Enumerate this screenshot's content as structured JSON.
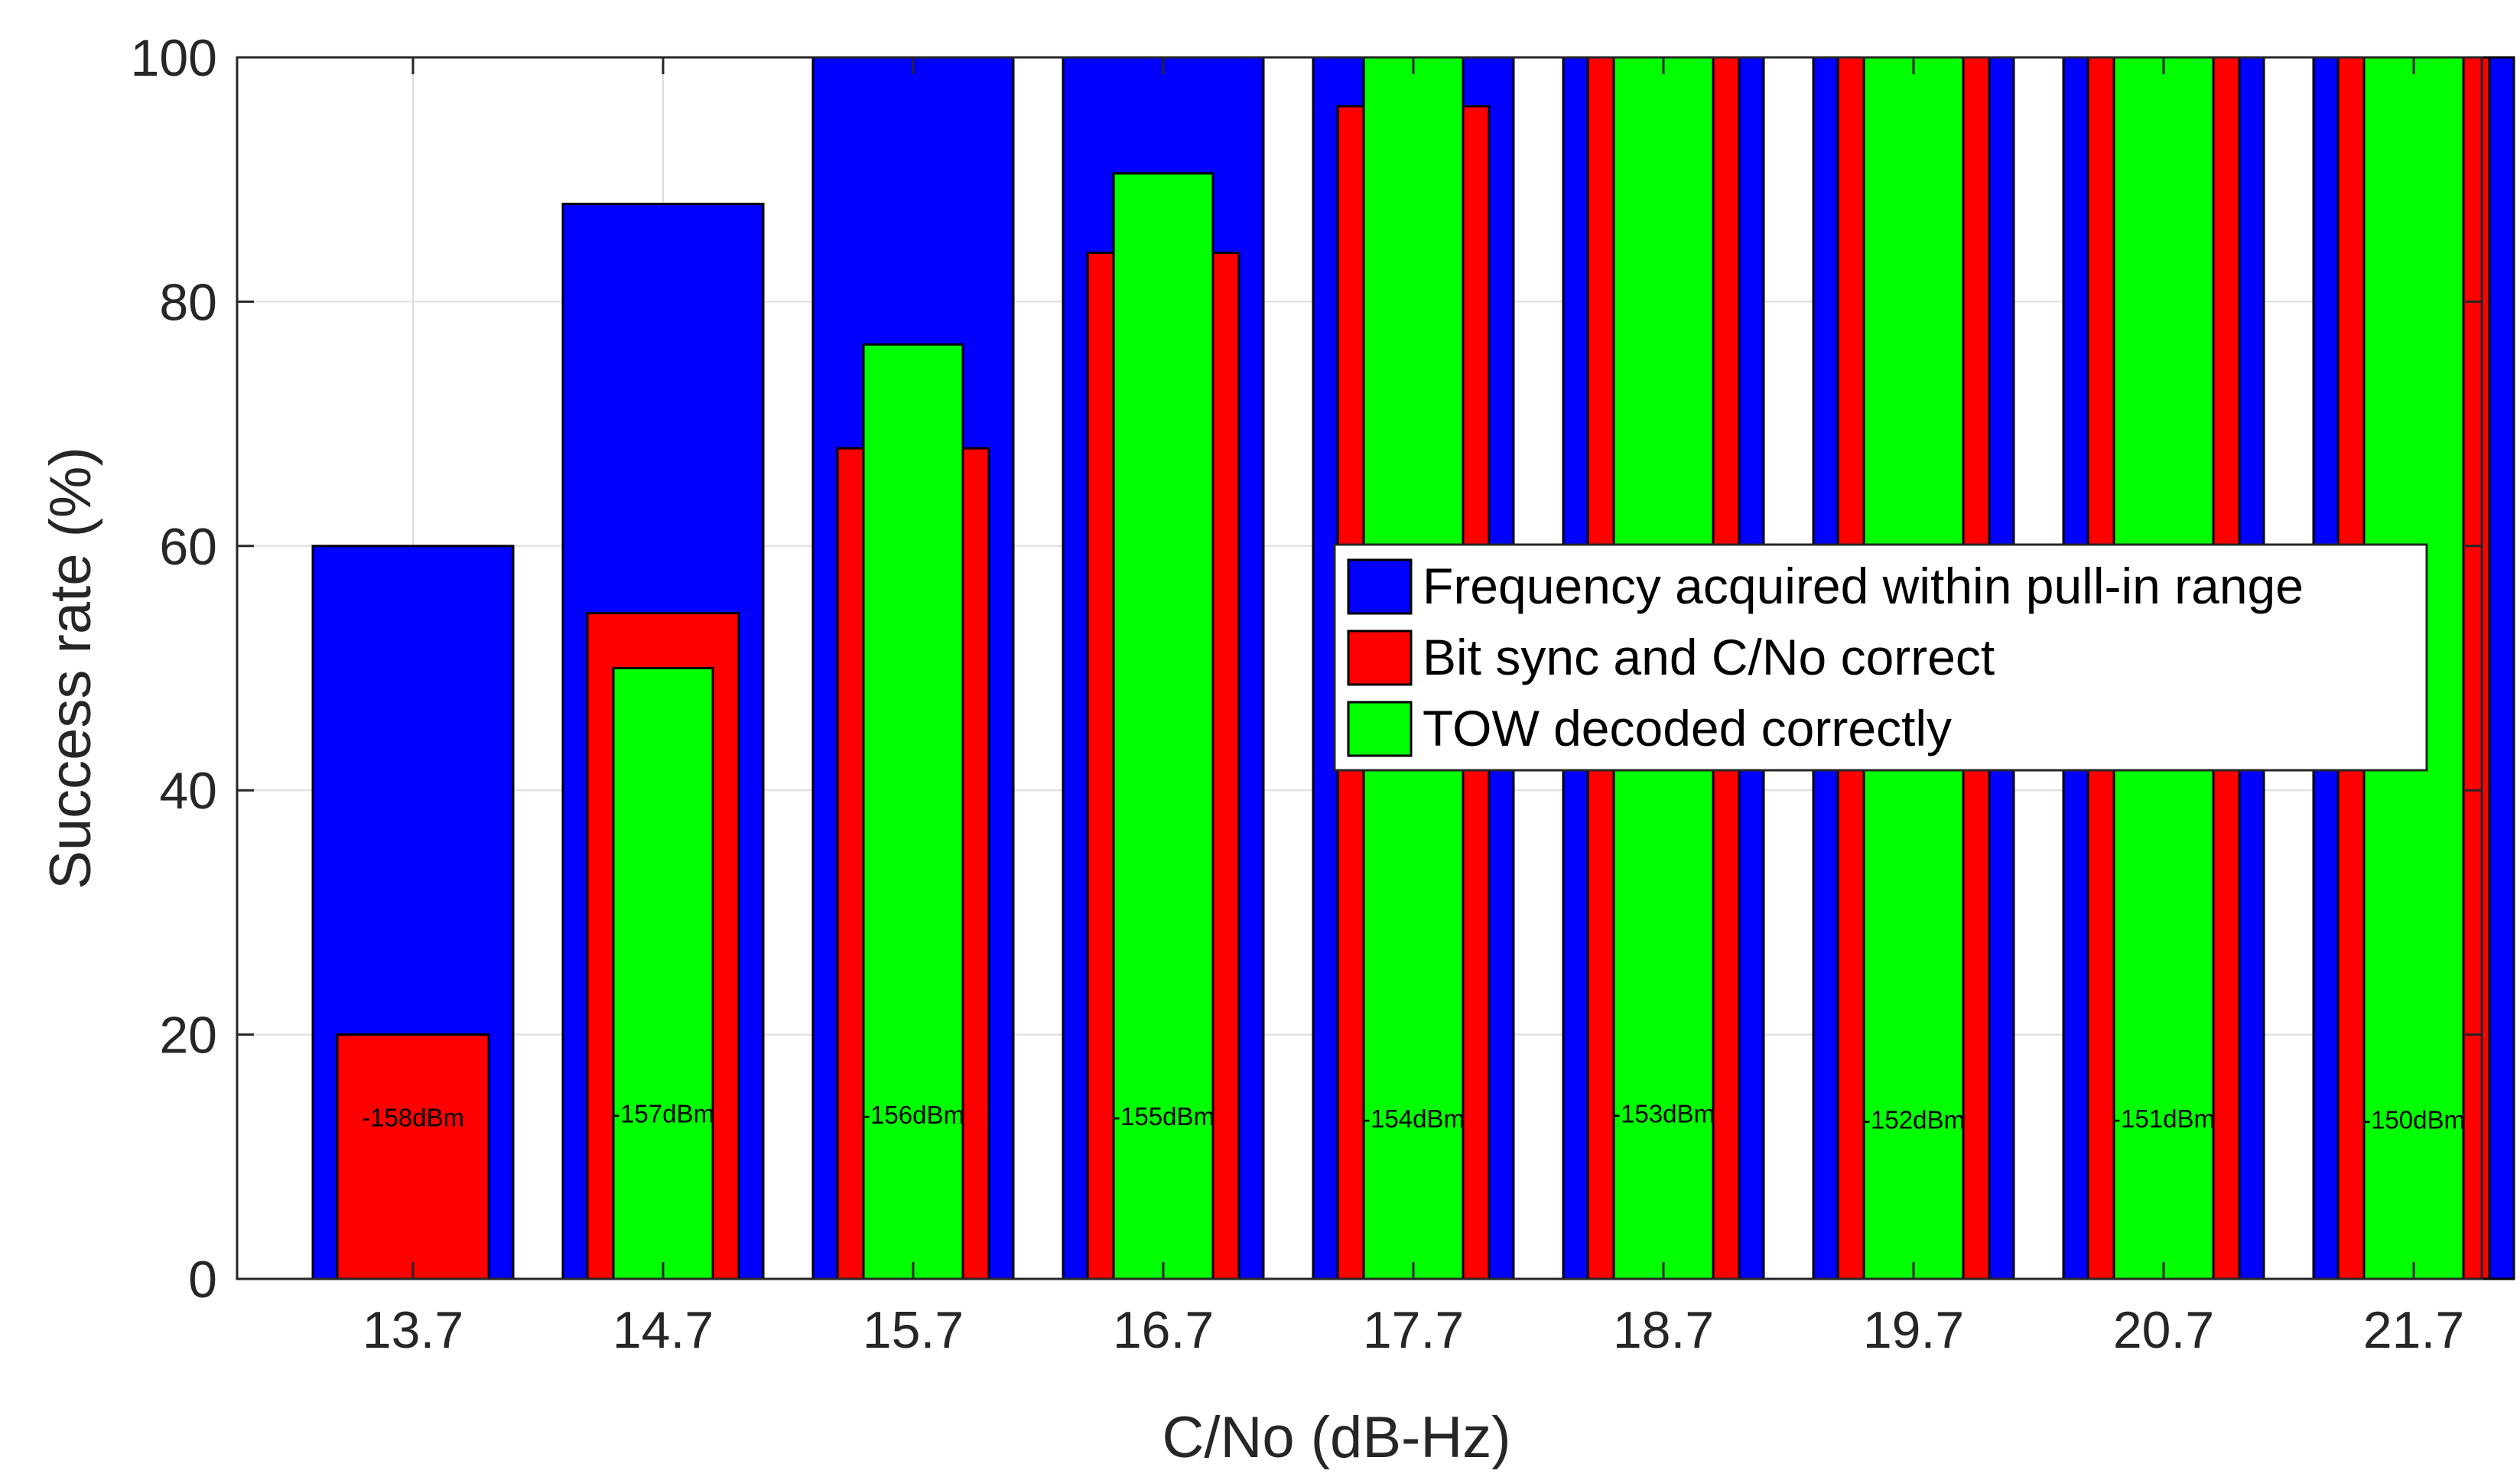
{
  "chart_data": {
    "type": "bar",
    "title": "",
    "xlabel": "C/No (dB-Hz)",
    "ylabel": "Success rate (%)",
    "ylim": [
      0,
      100
    ],
    "yticks": [
      "0",
      "20",
      "40",
      "60",
      "80",
      "100"
    ],
    "grid": true,
    "legend_position": "right-middle",
    "categories": [
      "13.7",
      "14.7",
      "15.7",
      "16.7",
      "17.7",
      "18.7",
      "19.7",
      "20.7",
      "21.7"
    ],
    "series": [
      {
        "name": "Frequency acquired within pull-in range",
        "color": "#0000ff",
        "values": [
          60,
          88,
          100,
          100,
          100,
          100,
          100,
          100,
          100
        ]
      },
      {
        "name": "Bit sync and C/No correct",
        "color": "#ff0000",
        "values": [
          20,
          54.5,
          68,
          84,
          96,
          100,
          100,
          100,
          100
        ]
      },
      {
        "name": "TOW decoded correctly",
        "color": "#00ff00",
        "values": [
          0,
          50,
          76.5,
          90.5,
          100,
          100,
          100,
          100,
          100
        ]
      }
    ],
    "annotations": [
      "-158dBm",
      "-157dBm",
      "-156dBm",
      "-155dBm",
      "-154dBm",
      "-153dBm",
      "-152dBm",
      "-151dBm",
      "-150dBm"
    ],
    "annotation_y": [
      12.5,
      12.8,
      12.7,
      12.6,
      12.4,
      12.8,
      12.3,
      12.4,
      12.3
    ]
  }
}
